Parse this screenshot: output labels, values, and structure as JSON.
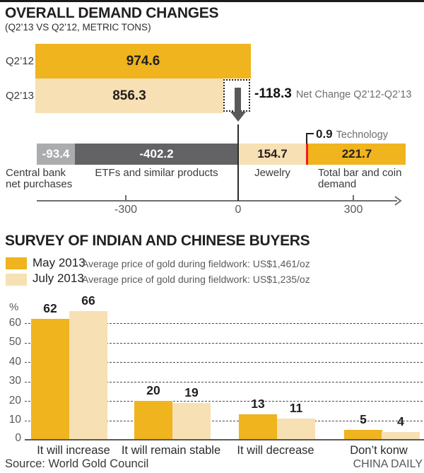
{
  "colors": {
    "gold": "#EFB41E",
    "light_gold": "#F7E0B3",
    "dark_gray": "#636366",
    "light_gray": "#ABACAE",
    "red": "#EC1C24",
    "arrow_gray": "#58595B",
    "text_dark": "#231F20",
    "text_gray": "#6D6E71"
  },
  "ui": {
    "legend_notes": [
      "Average price of gold during fieldwork: US$1,461/oz",
      "Average price of gold during fieldwork: US$1,235/oz"
    ],
    "footer": {
      "source": "Source: World Gold Council",
      "credit": "CHINA DAILY"
    }
  },
  "chart_data": [
    {
      "type": "bar",
      "orientation": "horizontal",
      "title": "OVERALL DEMAND CHANGES",
      "subtitle": "(Q2’13 VS Q2’12, METRIC TONS)",
      "categories": [
        "Q2’12",
        "Q2’13"
      ],
      "values": [
        974.6,
        856.3
      ],
      "annotation": {
        "net_change": -118.3,
        "label": "Net Change Q2’12-Q2’13"
      }
    },
    {
      "type": "bar",
      "orientation": "horizontal-diverging",
      "categories": [
        "Central bank net purchases",
        "ETFs and similar products",
        "Jewelry",
        "Technology",
        "Total bar and coin demand"
      ],
      "values": [
        -93.4,
        -402.2,
        154.7,
        0.9,
        221.7
      ],
      "x_ticks": [
        -300,
        0,
        300
      ],
      "xlim": [
        -530,
        430
      ],
      "grid": false
    },
    {
      "type": "bar",
      "title": "SURVEY OF INDIAN AND CHINESE BUYERS",
      "categories": [
        "It will increase",
        "It will remain stable",
        "It will decrease",
        "Don’t konw"
      ],
      "series": [
        {
          "name": "May 2013",
          "values": [
            62,
            20,
            13,
            5
          ]
        },
        {
          "name": "July 2013",
          "values": [
            66,
            19,
            11,
            4
          ]
        }
      ],
      "ylabel": "%",
      "ylim": [
        0,
        70
      ],
      "y_ticks": [
        0,
        10,
        20,
        30,
        40,
        50,
        60
      ],
      "grid": "horizontal-dashed",
      "legend_position": "top-left"
    }
  ]
}
